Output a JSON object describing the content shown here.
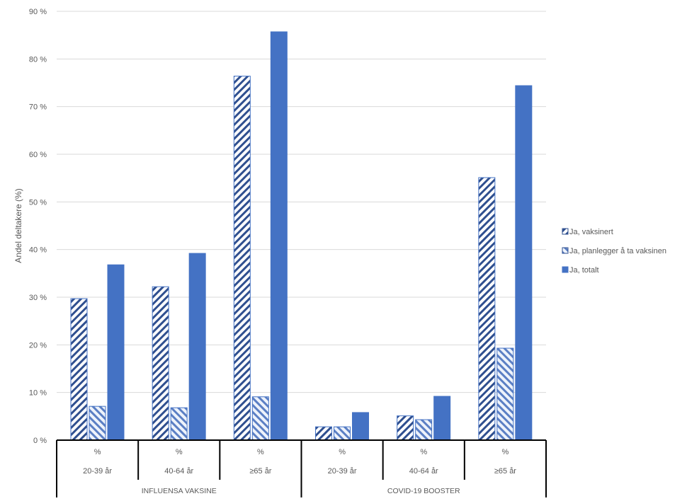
{
  "chart_data": {
    "type": "bar",
    "ylabel": "Andel deltakere (%)",
    "ylim": [
      0,
      90
    ],
    "yticks": [
      "0 %",
      "10 %",
      "20 %",
      "30 %",
      "40 %",
      "50 %",
      "60 %",
      "70 %",
      "80 %",
      "90 %"
    ],
    "grid": true,
    "legend_position": "right",
    "groups": [
      {
        "label": "INFLUENSA VAKSINE",
        "categories": [
          {
            "unit": "%",
            "label": "20-39 år"
          },
          {
            "unit": "%",
            "label": "40-64 år"
          },
          {
            "unit": "%",
            "label": "≥65 år"
          }
        ]
      },
      {
        "label": "COVID-19 BOOSTER",
        "categories": [
          {
            "unit": "%",
            "label": "20-39 år"
          },
          {
            "unit": "%",
            "label": "40-64 år"
          },
          {
            "unit": "%",
            "label": "≥65 år"
          }
        ]
      }
    ],
    "series": [
      {
        "name": "Ja, vaksinert",
        "style": "hatch-forward",
        "color": "#2f4f8f",
        "values": [
          29.7,
          32.2,
          76.4,
          2.8,
          5.1,
          55.1
        ]
      },
      {
        "name": "Ja, planlegger å ta vaksinen",
        "style": "hatch-back",
        "color": "#4472c4",
        "values": [
          7.1,
          6.8,
          9.1,
          2.8,
          4.3,
          19.3
        ]
      },
      {
        "name": "Ja, totalt",
        "style": "solid",
        "color": "#4472c4",
        "values": [
          36.8,
          39.2,
          85.7,
          5.8,
          9.2,
          74.4
        ]
      }
    ]
  }
}
